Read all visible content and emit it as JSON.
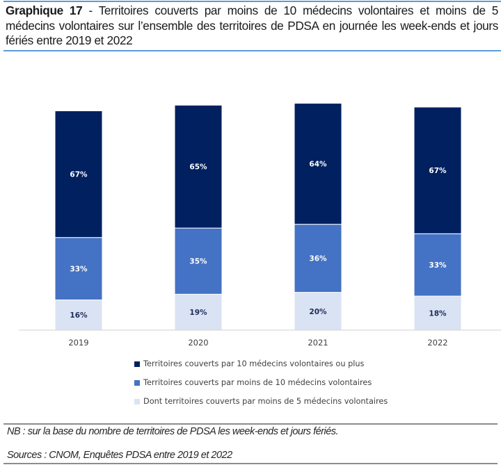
{
  "header": {
    "title_prefix": "Graphique 17",
    "title_separator": " - ",
    "title_text": "Territoires couverts par moins de 10 médecins volontaires et moins de 5 médecins volontaires sur l’ensemble des territoires de PDSA en journée les week-ends et jours fériés entre 2019 et 2022"
  },
  "chart_data": {
    "type": "bar",
    "stacked": true,
    "title": "Territoires couverts par moins de 10 médecins volontaires et moins de 5 médecins volontaires sur l’ensemble des territoires de PDSA en journée les week-ends et jours fériés entre 2019 et 2022",
    "xlabel": "",
    "ylabel": "",
    "grid": false,
    "legend_position": "bottom",
    "categories": [
      "2019",
      "2020",
      "2021",
      "2022"
    ],
    "series": [
      {
        "name": "Dont territoires couverts par moins de 5 médecins volontaires",
        "color": "#dae3f3",
        "label_color": "#1f2d5a",
        "values": [
          16,
          19,
          20,
          18
        ],
        "labels": [
          "16%",
          "19%",
          "20%",
          "18%"
        ]
      },
      {
        "name": "Territoires couverts par moins de 10 médecins volontaires",
        "color": "#4472c4",
        "label_color": "#ffffff",
        "values": [
          33,
          35,
          36,
          33
        ],
        "labels": [
          "33%",
          "35%",
          "36%",
          "33%"
        ]
      },
      {
        "name": "Territoires couverts par 10 médecins volontaires ou plus",
        "color": "#002060",
        "label_color": "#ffffff",
        "values": [
          67,
          65,
          64,
          67
        ],
        "labels": [
          "67%",
          "65%",
          "64%",
          "67%"
        ]
      }
    ],
    "legend_order": [
      2,
      1,
      0
    ],
    "ylim": [
      0,
      120
    ]
  },
  "notes": {
    "nb": "NB : sur la base du nombre de territoires de PDSA les week-ends et jours fériés.",
    "sources": "Sources : CNOM, Enquêtes PDSA entre 2019 et 2022"
  }
}
